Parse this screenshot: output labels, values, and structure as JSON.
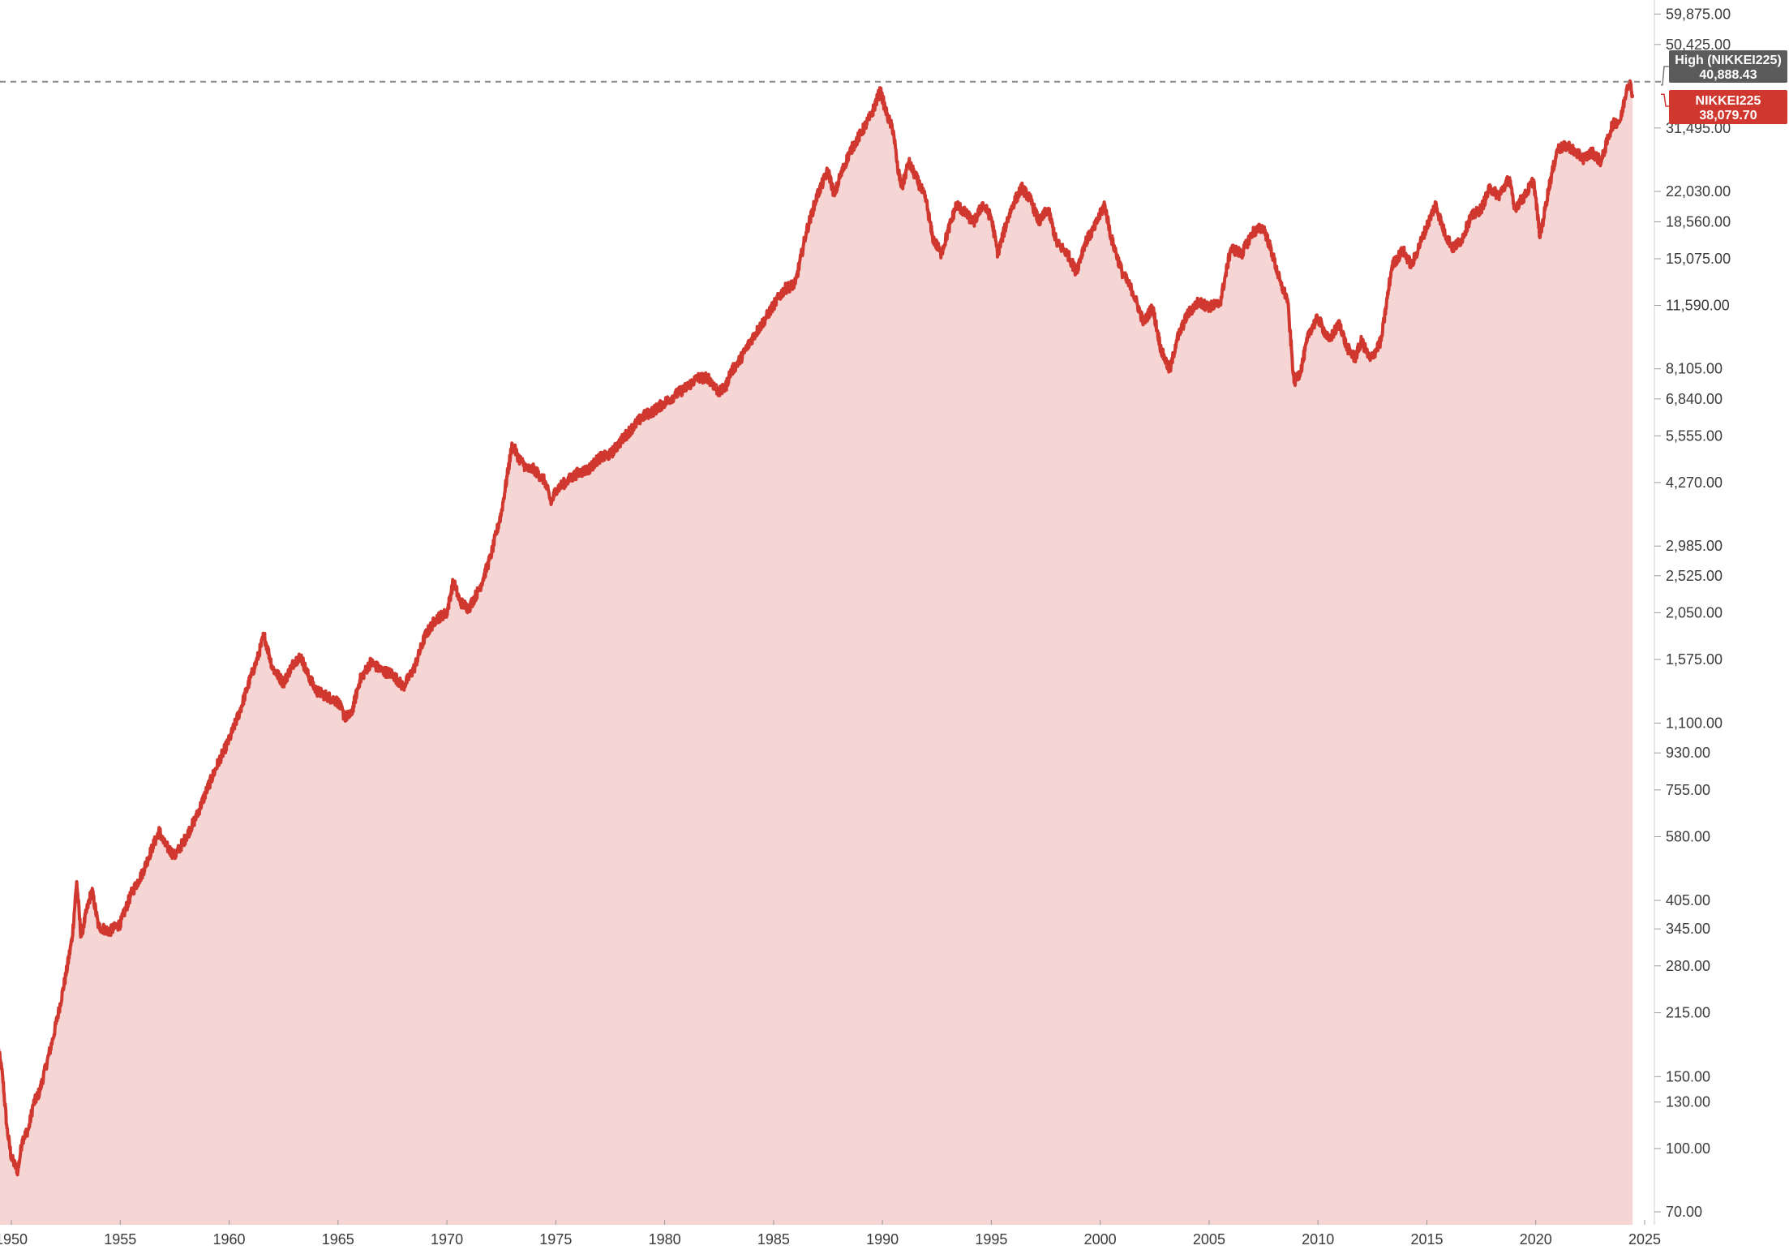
{
  "chart_data": {
    "type": "area",
    "title": "",
    "xlabel": "",
    "ylabel": "",
    "y_scale": "log",
    "xlim": [
      1949.4,
      2025.3
    ],
    "ylim": [
      65,
      65000
    ],
    "grid": false,
    "x_ticks": [
      "1950",
      "1955",
      "1960",
      "1965",
      "1970",
      "1975",
      "1980",
      "1985",
      "1990",
      "1995",
      "2000",
      "2005",
      "2010",
      "2015",
      "2020",
      "2025"
    ],
    "y_ticks": [
      {
        "value": 59875,
        "label": "59,875.00"
      },
      {
        "value": 50425,
        "label": "50,425.00"
      },
      {
        "value": 31495,
        "label": "31,495.00"
      },
      {
        "value": 22030,
        "label": "22,030.00"
      },
      {
        "value": 18560,
        "label": "18,560.00"
      },
      {
        "value": 15075,
        "label": "15,075.00"
      },
      {
        "value": 11590,
        "label": "11,590.00"
      },
      {
        "value": 8105,
        "label": "8,105.00"
      },
      {
        "value": 6840,
        "label": "6,840.00"
      },
      {
        "value": 5555,
        "label": "5,555.00"
      },
      {
        "value": 4270,
        "label": "4,270.00"
      },
      {
        "value": 2985,
        "label": "2,985.00"
      },
      {
        "value": 2525,
        "label": "2,525.00"
      },
      {
        "value": 2050,
        "label": "2,050.00"
      },
      {
        "value": 1575,
        "label": "1,575.00"
      },
      {
        "value": 1100,
        "label": "1,100.00"
      },
      {
        "value": 930,
        "label": "930.00"
      },
      {
        "value": 755,
        "label": "755.00"
      },
      {
        "value": 580,
        "label": "580.00"
      },
      {
        "value": 405,
        "label": "405.00"
      },
      {
        "value": 345,
        "label": "345.00"
      },
      {
        "value": 280,
        "label": "280.00"
      },
      {
        "value": 215,
        "label": "215.00"
      },
      {
        "value": 150,
        "label": "150.00"
      },
      {
        "value": 130,
        "label": "130.00"
      },
      {
        "value": 100,
        "label": "100.00"
      },
      {
        "value": 70,
        "label": "70.00"
      }
    ],
    "series": [
      {
        "name": "NIKKEI225",
        "color": "#d0382f",
        "fill": "#f6d6d5",
        "points": [
          [
            1949.4,
            176
          ],
          [
            1949.6,
            150
          ],
          [
            1949.8,
            112
          ],
          [
            1950.0,
            95
          ],
          [
            1950.3,
            88
          ],
          [
            1950.5,
            105
          ],
          [
            1950.8,
            112
          ],
          [
            1951.0,
            128
          ],
          [
            1951.3,
            138
          ],
          [
            1951.6,
            160
          ],
          [
            1951.9,
            185
          ],
          [
            1952.2,
            220
          ],
          [
            1952.5,
            265
          ],
          [
            1952.8,
            330
          ],
          [
            1953.0,
            450
          ],
          [
            1953.2,
            330
          ],
          [
            1953.5,
            390
          ],
          [
            1953.7,
            430
          ],
          [
            1954.0,
            350
          ],
          [
            1954.5,
            340
          ],
          [
            1955.0,
            355
          ],
          [
            1955.5,
            420
          ],
          [
            1956.0,
            470
          ],
          [
            1956.5,
            550
          ],
          [
            1956.8,
            600
          ],
          [
            1957.0,
            560
          ],
          [
            1957.5,
            520
          ],
          [
            1958.0,
            575
          ],
          [
            1958.5,
            650
          ],
          [
            1959.0,
            760
          ],
          [
            1959.5,
            880
          ],
          [
            1960.0,
            1000
          ],
          [
            1960.5,
            1180
          ],
          [
            1961.0,
            1430
          ],
          [
            1961.3,
            1580
          ],
          [
            1961.6,
            1810
          ],
          [
            1962.0,
            1500
          ],
          [
            1962.5,
            1380
          ],
          [
            1963.0,
            1560
          ],
          [
            1963.3,
            1600
          ],
          [
            1963.6,
            1450
          ],
          [
            1964.0,
            1320
          ],
          [
            1964.5,
            1280
          ],
          [
            1965.0,
            1240
          ],
          [
            1965.3,
            1140
          ],
          [
            1965.6,
            1150
          ],
          [
            1966.0,
            1400
          ],
          [
            1966.5,
            1550
          ],
          [
            1967.0,
            1480
          ],
          [
            1967.5,
            1450
          ],
          [
            1968.0,
            1350
          ],
          [
            1968.5,
            1500
          ],
          [
            1969.0,
            1800
          ],
          [
            1969.5,
            1980
          ],
          [
            1970.0,
            2050
          ],
          [
            1970.3,
            2450
          ],
          [
            1970.6,
            2180
          ],
          [
            1971.0,
            2100
          ],
          [
            1971.5,
            2350
          ],
          [
            1972.0,
            2800
          ],
          [
            1972.5,
            3600
          ],
          [
            1973.0,
            5300
          ],
          [
            1973.3,
            4900
          ],
          [
            1973.7,
            4600
          ],
          [
            1974.0,
            4600
          ],
          [
            1974.5,
            4300
          ],
          [
            1974.8,
            3800
          ],
          [
            1975.0,
            4100
          ],
          [
            1975.5,
            4300
          ],
          [
            1976.0,
            4500
          ],
          [
            1976.5,
            4600
          ],
          [
            1977.0,
            4900
          ],
          [
            1977.5,
            5000
          ],
          [
            1978.0,
            5400
          ],
          [
            1978.5,
            5800
          ],
          [
            1979.0,
            6200
          ],
          [
            1979.5,
            6400
          ],
          [
            1980.0,
            6700
          ],
          [
            1980.5,
            7000
          ],
          [
            1981.0,
            7300
          ],
          [
            1981.5,
            7700
          ],
          [
            1982.0,
            7700
          ],
          [
            1982.5,
            7100
          ],
          [
            1982.8,
            7300
          ],
          [
            1983.0,
            7900
          ],
          [
            1983.5,
            8600
          ],
          [
            1984.0,
            9600
          ],
          [
            1984.5,
            10500
          ],
          [
            1985.0,
            11600
          ],
          [
            1985.5,
            12700
          ],
          [
            1986.0,
            13100
          ],
          [
            1986.5,
            17500
          ],
          [
            1987.0,
            21500
          ],
          [
            1987.5,
            24800
          ],
          [
            1987.8,
            21500
          ],
          [
            1988.0,
            23500
          ],
          [
            1988.5,
            27500
          ],
          [
            1989.0,
            30500
          ],
          [
            1989.5,
            34000
          ],
          [
            1989.9,
            38900
          ],
          [
            1990.2,
            34000
          ],
          [
            1990.5,
            31000
          ],
          [
            1990.7,
            25000
          ],
          [
            1990.9,
            22500
          ],
          [
            1991.2,
            26000
          ],
          [
            1991.6,
            23500
          ],
          [
            1992.0,
            21000
          ],
          [
            1992.3,
            17000
          ],
          [
            1992.7,
            15500
          ],
          [
            1993.0,
            17500
          ],
          [
            1993.4,
            20500
          ],
          [
            1993.8,
            19500
          ],
          [
            1994.2,
            18500
          ],
          [
            1994.6,
            20500
          ],
          [
            1995.0,
            19000
          ],
          [
            1995.3,
            15500
          ],
          [
            1995.7,
            18500
          ],
          [
            1996.0,
            20500
          ],
          [
            1996.4,
            22500
          ],
          [
            1996.8,
            21000
          ],
          [
            1997.2,
            18500
          ],
          [
            1997.6,
            20000
          ],
          [
            1998.0,
            16500
          ],
          [
            1998.5,
            15500
          ],
          [
            1998.9,
            14000
          ],
          [
            1999.3,
            16500
          ],
          [
            1999.7,
            17800
          ],
          [
            2000.2,
            20500
          ],
          [
            2000.5,
            17000
          ],
          [
            2001.0,
            14000
          ],
          [
            2001.5,
            12500
          ],
          [
            2002.0,
            10500
          ],
          [
            2002.4,
            11500
          ],
          [
            2002.8,
            9000
          ],
          [
            2003.2,
            8000
          ],
          [
            2003.5,
            9500
          ],
          [
            2004.0,
            11000
          ],
          [
            2004.5,
            11800
          ],
          [
            2005.0,
            11500
          ],
          [
            2005.5,
            11700
          ],
          [
            2006.0,
            16000
          ],
          [
            2006.5,
            15500
          ],
          [
            2007.0,
            17500
          ],
          [
            2007.5,
            18000
          ],
          [
            2007.9,
            15500
          ],
          [
            2008.3,
            13000
          ],
          [
            2008.6,
            12000
          ],
          [
            2008.9,
            7500
          ],
          [
            2009.2,
            8000
          ],
          [
            2009.6,
            10000
          ],
          [
            2010.0,
            10800
          ],
          [
            2010.5,
            9500
          ],
          [
            2011.0,
            10500
          ],
          [
            2011.3,
            9200
          ],
          [
            2011.7,
            8600
          ],
          [
            2012.0,
            9500
          ],
          [
            2012.4,
            8500
          ],
          [
            2012.9,
            9500
          ],
          [
            2013.4,
            14500
          ],
          [
            2013.9,
            15800
          ],
          [
            2014.3,
            14500
          ],
          [
            2014.8,
            17000
          ],
          [
            2015.4,
            20500
          ],
          [
            2015.8,
            17500
          ],
          [
            2016.2,
            16000
          ],
          [
            2016.6,
            16800
          ],
          [
            2017.0,
            19000
          ],
          [
            2017.5,
            20000
          ],
          [
            2017.9,
            22500
          ],
          [
            2018.3,
            21500
          ],
          [
            2018.8,
            23800
          ],
          [
            2019.0,
            20000
          ],
          [
            2019.5,
            21500
          ],
          [
            2019.9,
            23500
          ],
          [
            2020.2,
            17000
          ],
          [
            2020.6,
            22500
          ],
          [
            2021.0,
            28000
          ],
          [
            2021.5,
            28500
          ],
          [
            2021.8,
            27500
          ],
          [
            2022.2,
            26500
          ],
          [
            2022.6,
            27500
          ],
          [
            2023.0,
            26000
          ],
          [
            2023.5,
            32000
          ],
          [
            2023.9,
            33000
          ],
          [
            2024.2,
            40000
          ],
          [
            2024.3,
            40888
          ],
          [
            2024.45,
            38080
          ]
        ]
      }
    ],
    "reference_lines": [
      {
        "label": "High (NIKKEI225)",
        "value_label": "40,888.43",
        "value": 40888.43,
        "color": "#5b5b5b"
      }
    ],
    "last_value": {
      "label": "NIKKEI225",
      "value_label": "38,079.70",
      "value": 38079.7,
      "color": "#d0382f"
    }
  }
}
